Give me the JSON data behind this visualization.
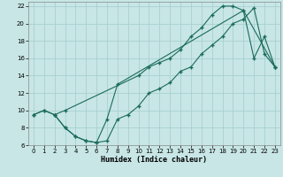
{
  "xlabel": "Humidex (Indice chaleur)",
  "background_color": "#c8e6e6",
  "grid_color": "#a8d0d0",
  "line_color": "#1a6b5a",
  "xlim": [
    -0.5,
    23.5
  ],
  "ylim": [
    6,
    22.5
  ],
  "xticks": [
    0,
    1,
    2,
    3,
    4,
    5,
    6,
    7,
    8,
    9,
    10,
    11,
    12,
    13,
    14,
    15,
    16,
    17,
    18,
    19,
    20,
    21,
    22,
    23
  ],
  "yticks": [
    6,
    8,
    10,
    12,
    14,
    16,
    18,
    20,
    22
  ],
  "line1_x": [
    0,
    1,
    2,
    3,
    10,
    11,
    12,
    13,
    14,
    15,
    16,
    17,
    18,
    19,
    20,
    23
  ],
  "line1_y": [
    9.5,
    10.0,
    9.5,
    10.0,
    14.0,
    15.0,
    15.5,
    16.0,
    17.0,
    18.5,
    19.5,
    21.0,
    22.0,
    22.0,
    21.5,
    15.0
  ],
  "line2_x": [
    0,
    1,
    2,
    3,
    4,
    5,
    6,
    7,
    8,
    9,
    10,
    11,
    12,
    13,
    14,
    15,
    16,
    17,
    18,
    19,
    20,
    21,
    22,
    23
  ],
  "line2_y": [
    9.5,
    10.0,
    9.5,
    8.0,
    7.0,
    6.5,
    6.3,
    6.5,
    9.0,
    9.5,
    10.5,
    12.0,
    12.5,
    13.2,
    14.5,
    15.0,
    16.5,
    17.5,
    18.5,
    20.0,
    20.5,
    21.8,
    16.5,
    15.0
  ],
  "line3_x": [
    2,
    3,
    4,
    5,
    6,
    7,
    8,
    20,
    21,
    22,
    23
  ],
  "line3_y": [
    9.5,
    8.0,
    7.0,
    6.5,
    6.3,
    9.0,
    13.0,
    21.5,
    16.0,
    18.5,
    15.0
  ]
}
